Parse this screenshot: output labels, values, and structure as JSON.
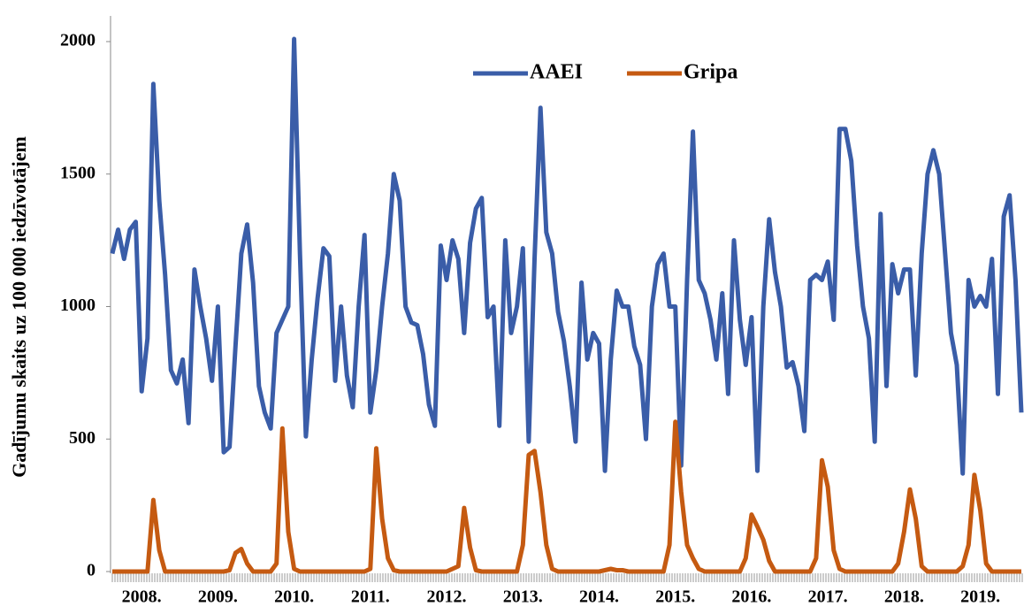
{
  "chart_data": {
    "type": "line",
    "y_label": "Gadījumu skaits uz 100 000 iedzīvotājem",
    "categories": [
      null,
      null,
      null,
      null,
      null,
      "2008.",
      null,
      null,
      null,
      null,
      null,
      null,
      null,
      null,
      null,
      null,
      null,
      null,
      "2009.",
      null,
      null,
      null,
      null,
      null,
      null,
      null,
      null,
      null,
      null,
      null,
      null,
      "2010.",
      null,
      null,
      null,
      null,
      null,
      null,
      null,
      null,
      null,
      null,
      null,
      null,
      "2011.",
      null,
      null,
      null,
      null,
      null,
      null,
      null,
      null,
      null,
      null,
      null,
      null,
      "2012.",
      null,
      null,
      null,
      null,
      null,
      null,
      null,
      null,
      null,
      null,
      null,
      null,
      "2013.",
      null,
      null,
      null,
      null,
      null,
      null,
      null,
      null,
      null,
      null,
      null,
      null,
      "2014.",
      null,
      null,
      null,
      null,
      null,
      null,
      null,
      null,
      null,
      null,
      null,
      null,
      "2015.",
      null,
      null,
      null,
      null,
      null,
      null,
      null,
      null,
      null,
      null,
      null,
      null,
      "2016.",
      null,
      null,
      null,
      null,
      null,
      null,
      null,
      null,
      null,
      null,
      null,
      null,
      "2017.",
      null,
      null,
      null,
      null,
      null,
      null,
      null,
      null,
      null,
      null,
      null,
      null,
      "2018.",
      null,
      null,
      null,
      null,
      null,
      null,
      null,
      null,
      null,
      null,
      null,
      null,
      "2019.",
      null,
      null,
      null,
      null,
      null,
      null,
      null
    ],
    "series": [
      {
        "name": "AAEI",
        "color": "#3a5da8",
        "values": [
          1200,
          1290,
          1180,
          1290,
          1320,
          680,
          880,
          1840,
          1400,
          1120,
          760,
          710,
          800,
          560,
          1140,
          1000,
          880,
          720,
          1000,
          450,
          470,
          850,
          1200,
          1310,
          1090,
          700,
          600,
          540,
          900,
          950,
          1000,
          2010,
          1200,
          510,
          800,
          1030,
          1220,
          1190,
          720,
          1000,
          740,
          620,
          1000,
          1270,
          600,
          760,
          1000,
          1200,
          1500,
          1400,
          1000,
          940,
          930,
          820,
          630,
          550,
          1230,
          1100,
          1250,
          1180,
          900,
          1240,
          1370,
          1410,
          960,
          1000,
          550,
          1250,
          900,
          1000,
          1220,
          490,
          1180,
          1750,
          1280,
          1200,
          980,
          870,
          700,
          490,
          1090,
          800,
          900,
          860,
          380,
          800,
          1060,
          1000,
          1000,
          850,
          780,
          500,
          1000,
          1160,
          1200,
          1000,
          1000,
          400,
          1100,
          1660,
          1100,
          1050,
          950,
          800,
          1050,
          670,
          1250,
          950,
          780,
          960,
          380,
          1000,
          1330,
          1130,
          1000,
          770,
          790,
          700,
          530,
          1100,
          1120,
          1100,
          1170,
          950,
          1670,
          1670,
          1550,
          1230,
          1000,
          880,
          490,
          1350,
          700,
          1160,
          1050,
          1140,
          1140,
          740,
          1200,
          1500,
          1590,
          1500,
          1200,
          900,
          780,
          370,
          1100,
          1000,
          1040,
          1000,
          1180,
          670,
          1340,
          1420,
          1100,
          600
        ]
      },
      {
        "name": "Gripa",
        "color": "#c55a11",
        "values": [
          0,
          0,
          0,
          0,
          0,
          0,
          0,
          270,
          80,
          0,
          0,
          0,
          0,
          0,
          0,
          0,
          0,
          0,
          0,
          0,
          5,
          70,
          85,
          30,
          0,
          0,
          0,
          0,
          30,
          540,
          150,
          10,
          0,
          0,
          0,
          0,
          0,
          0,
          0,
          0,
          0,
          0,
          0,
          0,
          10,
          465,
          200,
          50,
          5,
          0,
          0,
          0,
          0,
          0,
          0,
          0,
          0,
          0,
          10,
          20,
          240,
          90,
          5,
          0,
          0,
          0,
          0,
          0,
          0,
          0,
          100,
          440,
          455,
          300,
          100,
          10,
          0,
          0,
          0,
          0,
          0,
          0,
          0,
          0,
          5,
          10,
          5,
          5,
          0,
          0,
          0,
          0,
          0,
          0,
          0,
          100,
          565,
          300,
          100,
          50,
          10,
          0,
          0,
          0,
          0,
          0,
          0,
          0,
          50,
          215,
          170,
          120,
          40,
          0,
          0,
          0,
          0,
          0,
          0,
          0,
          50,
          420,
          320,
          80,
          10,
          0,
          0,
          0,
          0,
          0,
          0,
          0,
          0,
          0,
          30,
          150,
          310,
          200,
          20,
          0,
          0,
          0,
          0,
          0,
          0,
          20,
          100,
          365,
          230,
          30,
          0,
          0,
          0,
          0,
          0,
          0
        ]
      }
    ],
    "ylim": [
      0,
      2000
    ],
    "yticks": [
      0,
      500,
      1000,
      1500,
      2000
    ],
    "legend": "top"
  }
}
